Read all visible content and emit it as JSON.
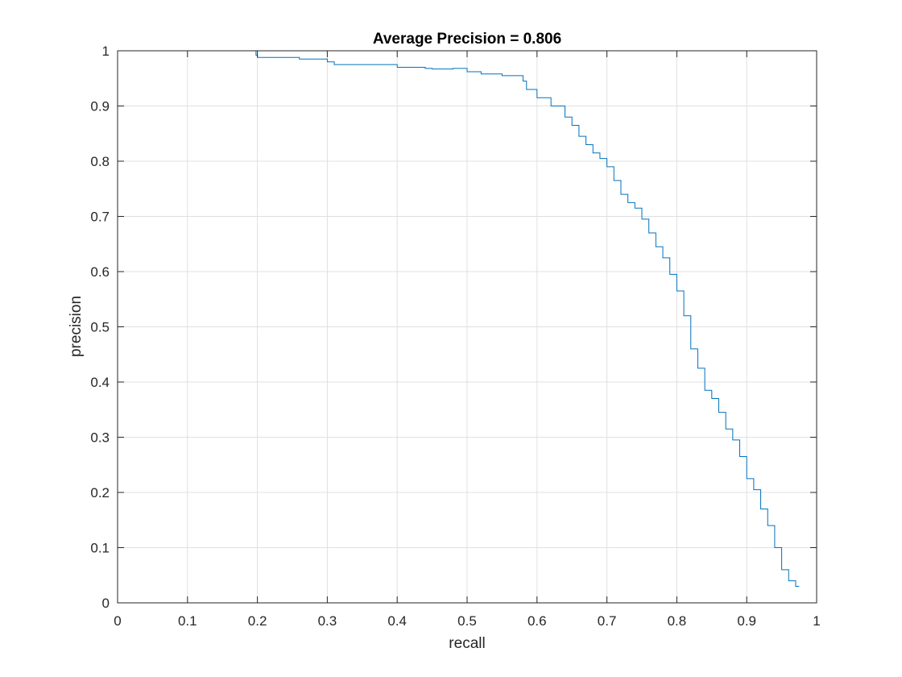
{
  "chart_data": {
    "type": "line",
    "title": "Average Precision = 0.806",
    "xlabel": "recall",
    "ylabel": "precision",
    "xlim": [
      0,
      1
    ],
    "ylim": [
      0,
      1
    ],
    "xticks": [
      0,
      0.1,
      0.2,
      0.3,
      0.4,
      0.5,
      0.6,
      0.7,
      0.8,
      0.9,
      1
    ],
    "yticks": [
      0,
      0.1,
      0.2,
      0.3,
      0.4,
      0.5,
      0.6,
      0.7,
      0.8,
      0.9,
      1
    ],
    "xtick_labels": [
      "0",
      "0.1",
      "0.2",
      "0.3",
      "0.4",
      "0.5",
      "0.6",
      "0.7",
      "0.8",
      "0.9",
      "1"
    ],
    "ytick_labels": [
      "0",
      "0.1",
      "0.2",
      "0.3",
      "0.4",
      "0.5",
      "0.6",
      "0.7",
      "0.8",
      "0.9",
      "1"
    ],
    "grid": true,
    "line_style": "step",
    "colors": {
      "line": "#0072bd",
      "grid": "#e0e0e0",
      "axis": "#262626"
    },
    "series": [
      {
        "x": [
          0,
          0.198,
          0.2,
          0.26,
          0.3,
          0.31,
          0.35,
          0.4,
          0.44,
          0.45,
          0.48,
          0.5,
          0.52,
          0.55,
          0.58,
          0.585,
          0.6,
          0.62,
          0.64,
          0.65,
          0.66,
          0.67,
          0.68,
          0.69,
          0.7,
          0.71,
          0.72,
          0.73,
          0.74,
          0.75,
          0.76,
          0.77,
          0.78,
          0.79,
          0.8,
          0.81,
          0.82,
          0.83,
          0.84,
          0.85,
          0.86,
          0.87,
          0.88,
          0.89,
          0.9,
          0.91,
          0.92,
          0.93,
          0.94,
          0.95,
          0.96,
          0.97,
          0.975
        ],
        "y": [
          1.0,
          1.0,
          0.992,
          0.988,
          0.985,
          0.98,
          0.975,
          0.975,
          0.97,
          0.968,
          0.967,
          0.968,
          0.962,
          0.958,
          0.955,
          0.945,
          0.93,
          0.915,
          0.9,
          0.88,
          0.865,
          0.845,
          0.83,
          0.815,
          0.805,
          0.79,
          0.765,
          0.74,
          0.725,
          0.715,
          0.695,
          0.67,
          0.645,
          0.625,
          0.595,
          0.565,
          0.52,
          0.46,
          0.425,
          0.385,
          0.37,
          0.345,
          0.315,
          0.295,
          0.265,
          0.225,
          0.205,
          0.17,
          0.14,
          0.1,
          0.06,
          0.04,
          0.03
        ]
      }
    ]
  }
}
